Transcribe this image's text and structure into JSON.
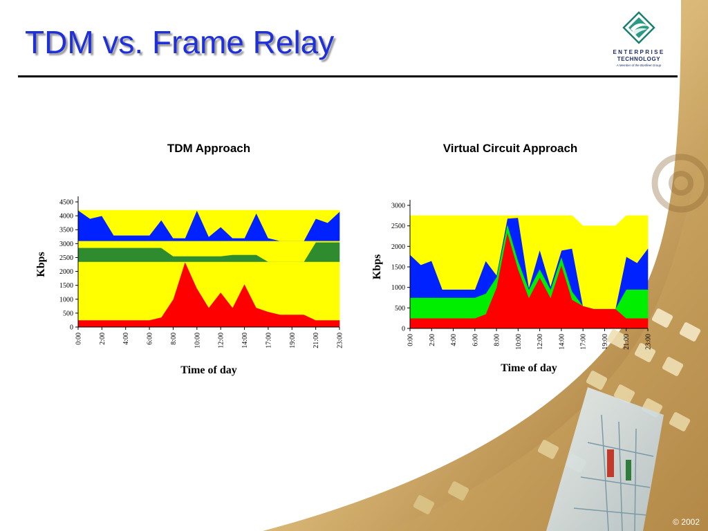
{
  "slide": {
    "title": "TDM vs. Frame Relay",
    "copyright": "© 2002"
  },
  "logo": {
    "line1": "ENTERPRISE",
    "line2": "TECHNOLOGY",
    "line3": "A Member of the Bonfleet Group"
  },
  "colors": {
    "title": "#1f30d8",
    "yellow": "#ffff00",
    "blue": "#0022ff",
    "dark_green": "#2e8b2e",
    "bright_green": "#00ee00",
    "red": "#ff0000"
  },
  "chart_data": [
    {
      "type": "area",
      "stacking": "stacked",
      "title": "TDM Approach",
      "xlabel": "Time of day",
      "ylabel": "Kbps",
      "ylim": [
        0,
        4500
      ],
      "yticks": [
        0,
        500,
        1000,
        1500,
        2000,
        2500,
        3000,
        3500,
        4000,
        4500
      ],
      "xtick_labels": [
        "0:00",
        "2:00",
        "4:00",
        "6:00",
        "8:00",
        "10:00",
        "12:00",
        "14:00",
        "17:00",
        "19:00",
        "21:00",
        "23:00"
      ],
      "xtick_indices": [
        0,
        2,
        4,
        6,
        8,
        10,
        12,
        14,
        16,
        18,
        20,
        22
      ],
      "categories": [
        "0:00",
        "1:00",
        "2:00",
        "3:00",
        "4:00",
        "5:00",
        "6:00",
        "7:00",
        "8:00",
        "9:00",
        "10:00",
        "11:00",
        "12:00",
        "13:00",
        "14:00",
        "15:00",
        "17:00",
        "18:00",
        "19:00",
        "20:00",
        "21:00",
        "22:00",
        "23:00"
      ],
      "grid": false,
      "legend": "none",
      "series": [
        {
          "color": "#ff0000",
          "values": [
            250,
            250,
            250,
            250,
            250,
            250,
            250,
            350,
            1000,
            2350,
            1400,
            700,
            1250,
            700,
            1550,
            700,
            550,
            450,
            450,
            450,
            250,
            250,
            250
          ]
        },
        {
          "color": "#ffff00",
          "values": [
            2100,
            2100,
            2100,
            2100,
            2100,
            2100,
            2100,
            2000,
            1350,
            0,
            950,
            1650,
            1100,
            1650,
            800,
            1650,
            1800,
            1900,
            1900,
            1900,
            2100,
            2100,
            2100
          ]
        },
        {
          "color": "#2e8b2e",
          "values": [
            500,
            500,
            500,
            500,
            500,
            500,
            500,
            500,
            200,
            200,
            200,
            200,
            200,
            250,
            250,
            250,
            0,
            0,
            0,
            0,
            700,
            700,
            700
          ]
        },
        {
          "color": "#ffff00",
          "values": [
            250,
            250,
            250,
            250,
            250,
            250,
            250,
            250,
            550,
            550,
            550,
            550,
            550,
            500,
            500,
            500,
            750,
            750,
            750,
            750,
            50,
            50,
            50
          ]
        },
        {
          "color": "#0022ff",
          "values": [
            1100,
            800,
            900,
            200,
            200,
            200,
            200,
            750,
            100,
            100,
            1100,
            150,
            500,
            100,
            100,
            1000,
            100,
            0,
            0,
            0,
            800,
            650,
            1050
          ]
        },
        {
          "color": "#ffff00",
          "values": [
            0,
            300,
            200,
            900,
            900,
            900,
            900,
            350,
            1000,
            1000,
            0,
            950,
            600,
            1000,
            1000,
            100,
            1000,
            1100,
            1100,
            1100,
            300,
            450,
            50
          ]
        }
      ]
    },
    {
      "type": "area",
      "stacking": "stacked",
      "title": "Virtual Circuit Approach",
      "xlabel": "Time of day",
      "ylabel": "Kbps",
      "ylim": [
        0,
        3000
      ],
      "yticks": [
        0,
        500,
        1000,
        1500,
        2000,
        2500,
        3000
      ],
      "xtick_labels": [
        "0:00",
        "2:00",
        "4:00",
        "6:00",
        "8:00",
        "10:00",
        "12:00",
        "14:00",
        "17:00",
        "19:00",
        "21:00",
        "23:00"
      ],
      "xtick_indices": [
        0,
        2,
        4,
        6,
        8,
        10,
        12,
        14,
        16,
        18,
        20,
        22
      ],
      "categories": [
        "0:00",
        "1:00",
        "2:00",
        "3:00",
        "4:00",
        "5:00",
        "6:00",
        "7:00",
        "8:00",
        "9:00",
        "10:00",
        "11:00",
        "12:00",
        "13:00",
        "14:00",
        "15:00",
        "17:00",
        "18:00",
        "19:00",
        "20:00",
        "21:00",
        "22:00",
        "23:00"
      ],
      "grid": false,
      "legend": "none",
      "series": [
        {
          "color": "#ff0000",
          "values": [
            250,
            250,
            250,
            250,
            250,
            250,
            250,
            350,
            1000,
            2350,
            1450,
            750,
            1250,
            750,
            1550,
            700,
            550,
            480,
            480,
            480,
            250,
            250,
            250
          ]
        },
        {
          "color": "#00ee00",
          "values": [
            500,
            500,
            500,
            500,
            500,
            500,
            500,
            500,
            250,
            200,
            200,
            200,
            200,
            200,
            200,
            200,
            0,
            0,
            0,
            0,
            700,
            700,
            700
          ]
        },
        {
          "color": "#0022ff",
          "values": [
            1050,
            800,
            900,
            200,
            200,
            200,
            200,
            800,
            50,
            130,
            1050,
            50,
            470,
            80,
            150,
            1050,
            0,
            0,
            0,
            0,
            800,
            650,
            1000
          ]
        },
        {
          "color": "#ffff00",
          "values": [
            950,
            1200,
            1100,
            1800,
            1800,
            1800,
            1800,
            1100,
            1450,
            70,
            50,
            1750,
            830,
            1720,
            850,
            800,
            1950,
            2020,
            2020,
            2020,
            1000,
            1150,
            800
          ]
        }
      ]
    }
  ]
}
